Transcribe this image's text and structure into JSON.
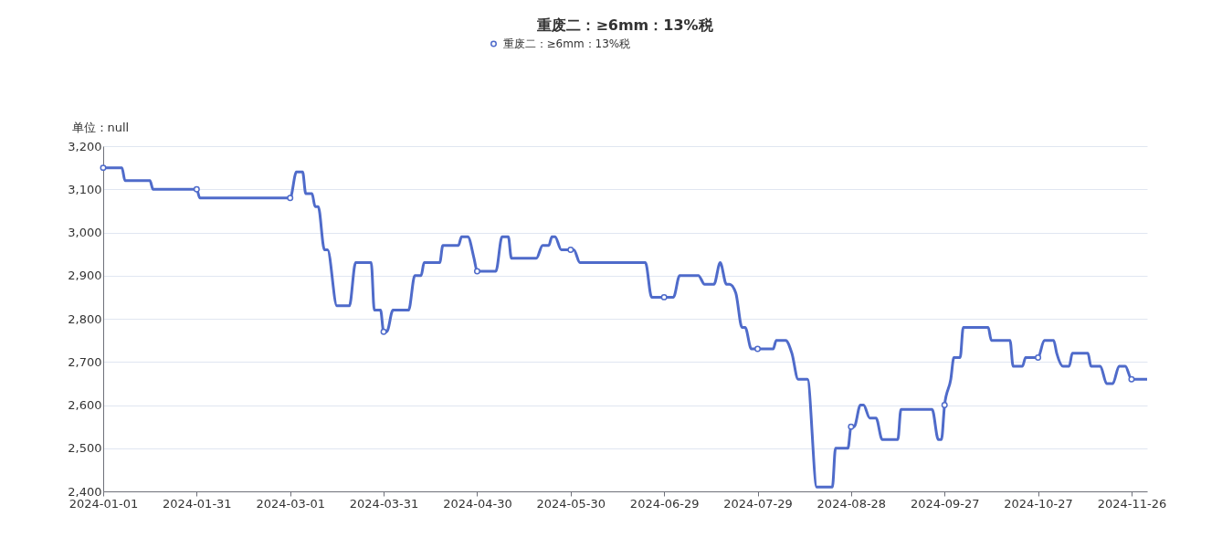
{
  "chart_data": {
    "type": "line",
    "title": "重废二：≥6mm：13%税",
    "ylabel": "单位：null",
    "x": [
      "2024-01-01",
      "2024-01-07",
      "2024-01-08",
      "2024-01-16",
      "2024-01-17",
      "2024-01-31",
      "2024-02-01",
      "2024-03-01",
      "2024-03-03",
      "2024-03-05",
      "2024-03-06",
      "2024-03-08",
      "2024-03-09",
      "2024-03-10",
      "2024-03-12",
      "2024-03-13",
      "2024-03-16",
      "2024-03-20",
      "2024-03-22",
      "2024-03-27",
      "2024-03-28",
      "2024-03-30",
      "2024-03-31",
      "2024-04-01",
      "2024-04-03",
      "2024-04-08",
      "2024-04-10",
      "2024-04-12",
      "2024-04-13",
      "2024-04-18",
      "2024-04-19",
      "2024-04-24",
      "2024-04-25",
      "2024-04-27",
      "2024-04-29",
      "2024-04-30",
      "2024-05-06",
      "2024-05-08",
      "2024-05-10",
      "2024-05-11",
      "2024-05-19",
      "2024-05-21",
      "2024-05-23",
      "2024-05-24",
      "2024-05-25",
      "2024-05-27",
      "2024-05-30",
      "2024-05-31",
      "2024-06-02",
      "2024-06-23",
      "2024-06-25",
      "2024-06-29",
      "2024-07-02",
      "2024-07-04",
      "2024-07-10",
      "2024-07-12",
      "2024-07-15",
      "2024-07-17",
      "2024-07-19",
      "2024-07-20",
      "2024-07-22",
      "2024-07-24",
      "2024-07-25",
      "2024-07-27",
      "2024-07-29",
      "2024-08-03",
      "2024-08-04",
      "2024-08-07",
      "2024-08-09",
      "2024-08-11",
      "2024-08-14",
      "2024-08-17",
      "2024-08-22",
      "2024-08-23",
      "2024-08-27",
      "2024-08-28",
      "2024-08-29",
      "2024-08-31",
      "2024-09-01",
      "2024-09-03",
      "2024-09-05",
      "2024-09-07",
      "2024-09-12",
      "2024-09-13",
      "2024-09-23",
      "2024-09-25",
      "2024-09-26",
      "2024-09-27",
      "2024-09-29",
      "2024-09-30",
      "2024-10-02",
      "2024-10-03",
      "2024-10-11",
      "2024-10-12",
      "2024-10-18",
      "2024-10-19",
      "2024-10-22",
      "2024-10-23",
      "2024-10-27",
      "2024-10-29",
      "2024-11-01",
      "2024-11-02",
      "2024-11-04",
      "2024-11-06",
      "2024-11-07",
      "2024-11-12",
      "2024-11-13",
      "2024-11-16",
      "2024-11-18",
      "2024-11-20",
      "2024-11-22",
      "2024-11-24",
      "2024-11-26",
      "2024-12-01"
    ],
    "series": [
      {
        "name": "重废二：≥6mm：13%税",
        "color": "#4f6bca",
        "values": [
          3150,
          3150,
          3120,
          3120,
          3100,
          3100,
          3080,
          3080,
          3140,
          3140,
          3090,
          3090,
          3060,
          3060,
          2960,
          2960,
          2830,
          2830,
          2930,
          2930,
          2820,
          2820,
          2770,
          2770,
          2820,
          2820,
          2900,
          2900,
          2930,
          2930,
          2970,
          2970,
          2990,
          2990,
          2940,
          2910,
          2910,
          2990,
          2990,
          2940,
          2940,
          2970,
          2970,
          2990,
          2990,
          2960,
          2960,
          2960,
          2930,
          2930,
          2850,
          2850,
          2850,
          2900,
          2900,
          2880,
          2880,
          2930,
          2880,
          2880,
          2860,
          2780,
          2780,
          2730,
          2730,
          2730,
          2750,
          2750,
          2720,
          2660,
          2660,
          2410,
          2410,
          2500,
          2500,
          2550,
          2550,
          2600,
          2600,
          2570,
          2570,
          2520,
          2520,
          2590,
          2590,
          2520,
          2520,
          2600,
          2660,
          2710,
          2710,
          2780,
          2780,
          2750,
          2750,
          2690,
          2690,
          2710,
          2710,
          2750,
          2750,
          2720,
          2690,
          2690,
          2720,
          2720,
          2690,
          2690,
          2650,
          2650,
          2690,
          2690,
          2660,
          2660
        ]
      },
      {
        "type": "scatter",
        "marker": "circle",
        "color": "#4f6bca",
        "x": [
          "2024-01-01",
          "2024-01-31",
          "2024-03-01",
          "2024-03-31",
          "2024-04-30",
          "2024-05-30",
          "2024-06-29",
          "2024-07-29",
          "2024-08-28",
          "2024-09-27",
          "2024-10-27",
          "2024-11-26"
        ],
        "values": [
          3150,
          3100,
          3080,
          2770,
          2910,
          2960,
          2850,
          2730,
          2550,
          2600,
          2710,
          2660
        ]
      }
    ],
    "xlim": [
      "2024-01-01",
      "2024-12-01"
    ],
    "xticks": [
      "2024-01-01",
      "2024-01-31",
      "2024-03-01",
      "2024-03-31",
      "2024-04-30",
      "2024-05-30",
      "2024-06-29",
      "2024-07-29",
      "2024-08-28",
      "2024-09-27",
      "2024-10-27",
      "2024-11-26"
    ],
    "ylim": [
      2400,
      3200
    ],
    "yticks": [
      {
        "value": 2400,
        "label": "2,400"
      },
      {
        "value": 2500,
        "label": "2,500"
      },
      {
        "value": 2600,
        "label": "2,600"
      },
      {
        "value": 2700,
        "label": "2,700"
      },
      {
        "value": 2800,
        "label": "2,800"
      },
      {
        "value": 2900,
        "label": "2,900"
      },
      {
        "value": 3000,
        "label": "3,000"
      },
      {
        "value": 3100,
        "label": "3,100"
      },
      {
        "value": 3200,
        "label": "3,200"
      }
    ],
    "grid": "y",
    "legend": "top",
    "line_style": "solid"
  }
}
